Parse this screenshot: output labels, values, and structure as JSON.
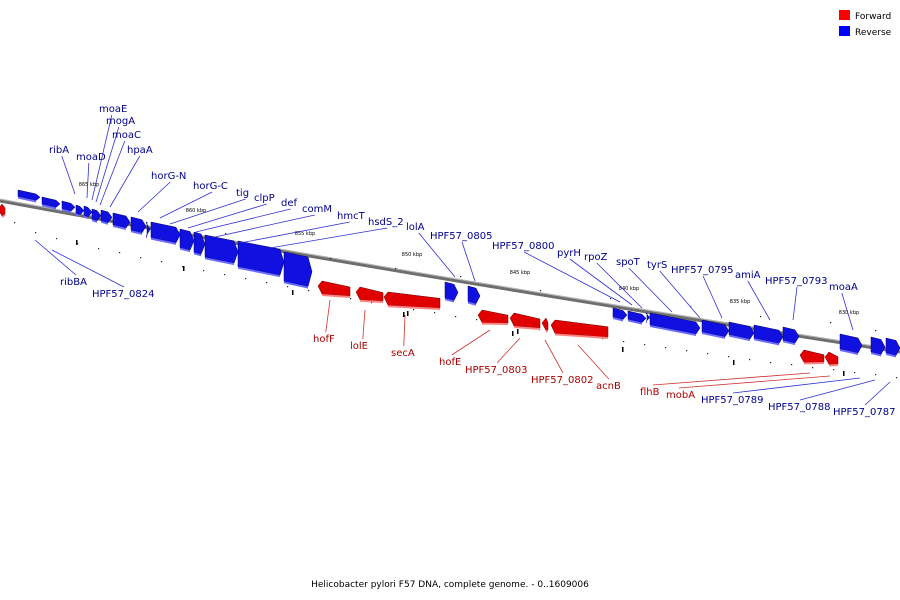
{
  "caption": "Helicobacter pylori F57 DNA, complete genome. - 0..1609006",
  "legend": [
    {
      "label": "Forward",
      "color": "#ff0000"
    },
    {
      "label": "Reverse",
      "color": "#0000ff"
    }
  ],
  "colors": {
    "forward": "#e00000",
    "reverse": "#1010e0",
    "forward_label": "#aa0000",
    "reverse_label": "#000088",
    "backbone": "#808080"
  },
  "ticks": [
    "865 kbp",
    "860 kbp",
    "855 kbp",
    "850 kbp",
    "845 kbp",
    "840 kbp",
    "835 kbp",
    "830 kbp"
  ],
  "reverse_genes": [
    "ribA",
    "moaD",
    "moaE",
    "mogA",
    "moaC",
    "hpaA",
    "horG-N",
    "horG-C",
    "tig",
    "clpP",
    "def",
    "comM",
    "hmcT",
    "hsdS_2",
    "lolA",
    "HPF57_0805",
    "HPF57_0800",
    "pyrH",
    "rpoZ",
    "spoT",
    "tyrS",
    "HPF57_0795",
    "amiA",
    "HPF57_0793",
    "moaA",
    "ribBA",
    "HPF57_0824",
    "HPF57_0789",
    "HPF57_0788",
    "HPF57_0787"
  ],
  "forward_genes": [
    "hofF",
    "lolE",
    "secA",
    "hofE",
    "HPF57_0803",
    "HPF57_0802",
    "acnB",
    "flhB",
    "mobA"
  ]
}
